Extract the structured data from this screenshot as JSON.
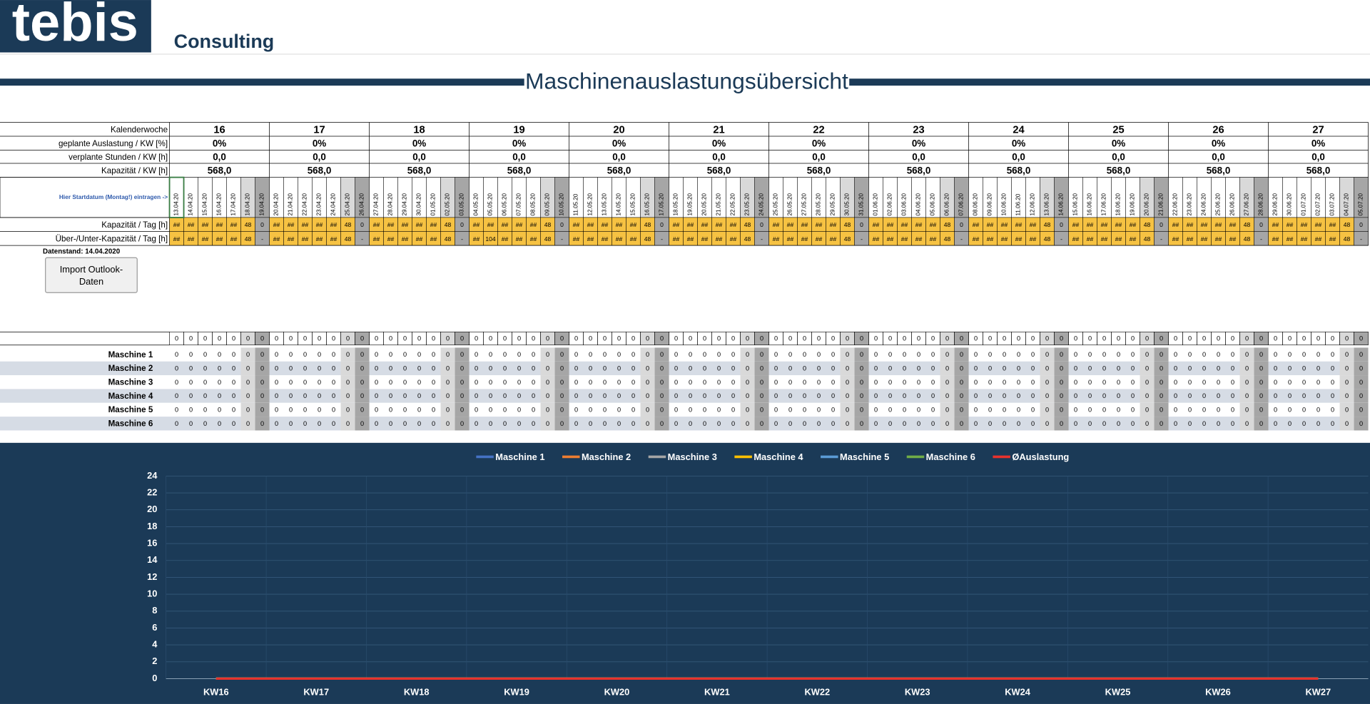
{
  "header": {
    "logo": "tebis",
    "company": "Consulting",
    "title": "Maschinenauslastungsübersicht"
  },
  "table": {
    "row_labels": [
      "Kalenderwoche",
      "geplante Auslastung / KW [%]",
      "verplante Stunden / KW [h]",
      "Kapazität / KW [h]"
    ],
    "weeks": [
      {
        "week": 16,
        "utilization": "0%",
        "planned_hours": "0,0",
        "capacity": "568,0"
      },
      {
        "week": 17,
        "utilization": "0%",
        "planned_hours": "0,0",
        "capacity": "568,0"
      },
      {
        "week": 18,
        "utilization": "0%",
        "planned_hours": "0,0",
        "capacity": "568,0"
      },
      {
        "week": 19,
        "utilization": "0%",
        "planned_hours": "0,0",
        "capacity": "568,0"
      },
      {
        "week": 20,
        "utilization": "0%",
        "planned_hours": "0,0",
        "capacity": "568,0"
      },
      {
        "week": 21,
        "utilization": "0%",
        "planned_hours": "0,0",
        "capacity": "568,0"
      },
      {
        "week": 22,
        "utilization": "0%",
        "planned_hours": "0,0",
        "capacity": "568,0"
      },
      {
        "week": 23,
        "utilization": "0%",
        "planned_hours": "0,0",
        "capacity": "568,0"
      },
      {
        "week": 24,
        "utilization": "0%",
        "planned_hours": "0,0",
        "capacity": "568,0"
      },
      {
        "week": 25,
        "utilization": "0%",
        "planned_hours": "0,0",
        "capacity": "568,0"
      },
      {
        "week": 26,
        "utilization": "0%",
        "planned_hours": "0,0",
        "capacity": "568,0"
      },
      {
        "week": 27,
        "utilization": "0%",
        "planned_hours": "0,0",
        "capacity": "568,0"
      }
    ],
    "start_hint": "Hier Startdatum (Montag!) eintragen ->",
    "dates": [
      "13.04.20",
      "14.04.20",
      "15.04.20",
      "16.04.20",
      "17.04.20",
      "18.04.20",
      "19.04.20",
      "20.04.20",
      "21.04.20",
      "22.04.20",
      "23.04.20",
      "24.04.20",
      "25.04.20",
      "26.04.20",
      "27.04.20",
      "28.04.20",
      "29.04.20",
      "30.04.20",
      "01.05.20",
      "02.05.20",
      "03.05.20",
      "04.05.20",
      "05.05.20",
      "06.05.20",
      "07.05.20",
      "08.05.20",
      "09.05.20",
      "10.05.20",
      "11.05.20",
      "12.05.20",
      "13.05.20",
      "14.05.20",
      "15.05.20",
      "16.05.20",
      "17.05.20",
      "18.05.20",
      "19.05.20",
      "20.05.20",
      "21.05.20",
      "22.05.20",
      "23.05.20",
      "24.05.20",
      "25.05.20",
      "26.05.20",
      "27.05.20",
      "28.05.20",
      "29.05.20",
      "30.05.20",
      "31.05.20",
      "01.06.20",
      "02.06.20",
      "03.06.20",
      "04.06.20",
      "05.06.20",
      "06.06.20",
      "07.06.20",
      "08.06.20",
      "09.06.20",
      "10.06.20",
      "11.06.20",
      "12.06.20",
      "13.06.20",
      "14.06.20",
      "15.06.20",
      "16.06.20",
      "17.06.20",
      "18.06.20",
      "19.06.20",
      "20.06.20",
      "21.06.20",
      "22.06.20",
      "23.06.20",
      "24.06.20",
      "25.06.20",
      "26.06.20",
      "27.06.20",
      "28.06.20",
      "29.06.20",
      "30.06.20",
      "01.07.20",
      "02.07.20",
      "03.07.20",
      "04.07.20",
      "05.07.20"
    ],
    "daily_capacity_label": "Kapazität / Tag [h]",
    "daily_capacity": [
      "##",
      "##",
      "##",
      "##",
      "##",
      48,
      0,
      "##",
      "##",
      "##",
      "##",
      "##",
      48,
      0,
      "##",
      "##",
      "##",
      "##",
      "##",
      48,
      0,
      "##",
      "##",
      "##",
      "##",
      "##",
      48,
      0,
      "##",
      "##",
      "##",
      "##",
      "##",
      48,
      0,
      "##",
      "##",
      "##",
      "##",
      "##",
      48,
      0,
      "##",
      "##",
      "##",
      "##",
      "##",
      48,
      0,
      "##",
      "##",
      "##",
      "##",
      "##",
      48,
      0,
      "##",
      "##",
      "##",
      "##",
      "##",
      48,
      0,
      "##",
      "##",
      "##",
      "##",
      "##",
      48,
      0,
      "##",
      "##",
      "##",
      "##",
      "##",
      48,
      0,
      "##",
      "##",
      "##",
      "##",
      "##",
      48,
      0
    ],
    "daily_balance_label": "Über-/Unter-Kapazität / Tag [h]",
    "daily_balance": [
      "##",
      "##",
      "##",
      "##",
      "##",
      48,
      "-",
      "##",
      "##",
      "##",
      "##",
      "##",
      48,
      "-",
      "##",
      "##",
      "##",
      "##",
      "##",
      48,
      "-",
      "##",
      104,
      "##",
      "##",
      "##",
      48,
      "-",
      "##",
      "##",
      "##",
      "##",
      "##",
      48,
      "-",
      "##",
      "##",
      "##",
      "##",
      "##",
      48,
      "-",
      "##",
      "##",
      "##",
      "##",
      "##",
      48,
      "-",
      "##",
      "##",
      "##",
      "##",
      "##",
      48,
      "-",
      "##",
      "##",
      "##",
      "##",
      "##",
      48,
      "-",
      "##",
      "##",
      "##",
      "##",
      "##",
      48,
      "-",
      "##",
      "##",
      "##",
      "##",
      "##",
      48,
      "-",
      "##",
      "##",
      "##",
      "##",
      "##",
      48,
      "-"
    ],
    "data_status": "Datenstand: 14.04.2020",
    "import_button": [
      "Import Outlook-",
      "Daten"
    ],
    "totals": [
      0,
      0,
      0,
      0,
      0,
      0,
      0,
      0,
      0,
      0,
      0,
      0,
      0,
      0,
      0,
      0,
      0,
      0,
      0,
      0,
      0,
      0,
      0,
      0,
      0,
      0,
      0,
      0,
      0,
      0,
      0,
      0,
      0,
      0,
      0,
      0,
      0,
      0,
      0,
      0,
      0,
      0,
      0,
      0,
      0,
      0,
      0,
      0,
      0,
      0,
      0,
      0,
      0,
      0,
      0,
      0,
      0,
      0,
      0,
      0,
      0,
      0,
      0,
      0,
      0,
      0,
      0,
      0,
      0,
      0,
      0,
      0,
      0,
      0,
      0,
      0,
      0,
      0,
      0,
      0,
      0,
      0,
      0,
      0
    ],
    "machines": [
      {
        "name": "Maschine 1",
        "hours": [
          0,
          0,
          0,
          0,
          0,
          0,
          0,
          0,
          0,
          0,
          0,
          0,
          0,
          0,
          0,
          0,
          0,
          0,
          0,
          0,
          0,
          0,
          0,
          0,
          0,
          0,
          0,
          0,
          0,
          0,
          0,
          0,
          0,
          0,
          0,
          0,
          0,
          0,
          0,
          0,
          0,
          0,
          0,
          0,
          0,
          0,
          0,
          0,
          0,
          0,
          0,
          0,
          0,
          0,
          0,
          0,
          0,
          0,
          0,
          0,
          0,
          0,
          0,
          0,
          0,
          0,
          0,
          0,
          0,
          0,
          0,
          0,
          0,
          0,
          0,
          0,
          0,
          0,
          0,
          0,
          0,
          0,
          0,
          0
        ]
      },
      {
        "name": "Maschine 2",
        "hours": [
          0,
          0,
          0,
          0,
          0,
          0,
          0,
          0,
          0,
          0,
          0,
          0,
          0,
          0,
          0,
          0,
          0,
          0,
          0,
          0,
          0,
          0,
          0,
          0,
          0,
          0,
          0,
          0,
          0,
          0,
          0,
          0,
          0,
          0,
          0,
          0,
          0,
          0,
          0,
          0,
          0,
          0,
          0,
          0,
          0,
          0,
          0,
          0,
          0,
          0,
          0,
          0,
          0,
          0,
          0,
          0,
          0,
          0,
          0,
          0,
          0,
          0,
          0,
          0,
          0,
          0,
          0,
          0,
          0,
          0,
          0,
          0,
          0,
          0,
          0,
          0,
          0,
          0,
          0,
          0,
          0,
          0,
          0,
          0
        ]
      },
      {
        "name": "Maschine 3",
        "hours": [
          0,
          0,
          0,
          0,
          0,
          0,
          0,
          0,
          0,
          0,
          0,
          0,
          0,
          0,
          0,
          0,
          0,
          0,
          0,
          0,
          0,
          0,
          0,
          0,
          0,
          0,
          0,
          0,
          0,
          0,
          0,
          0,
          0,
          0,
          0,
          0,
          0,
          0,
          0,
          0,
          0,
          0,
          0,
          0,
          0,
          0,
          0,
          0,
          0,
          0,
          0,
          0,
          0,
          0,
          0,
          0,
          0,
          0,
          0,
          0,
          0,
          0,
          0,
          0,
          0,
          0,
          0,
          0,
          0,
          0,
          0,
          0,
          0,
          0,
          0,
          0,
          0,
          0,
          0,
          0,
          0,
          0,
          0,
          0
        ]
      },
      {
        "name": "Maschine 4",
        "hours": [
          0,
          0,
          0,
          0,
          0,
          0,
          0,
          0,
          0,
          0,
          0,
          0,
          0,
          0,
          0,
          0,
          0,
          0,
          0,
          0,
          0,
          0,
          0,
          0,
          0,
          0,
          0,
          0,
          0,
          0,
          0,
          0,
          0,
          0,
          0,
          0,
          0,
          0,
          0,
          0,
          0,
          0,
          0,
          0,
          0,
          0,
          0,
          0,
          0,
          0,
          0,
          0,
          0,
          0,
          0,
          0,
          0,
          0,
          0,
          0,
          0,
          0,
          0,
          0,
          0,
          0,
          0,
          0,
          0,
          0,
          0,
          0,
          0,
          0,
          0,
          0,
          0,
          0,
          0,
          0,
          0,
          0,
          0,
          0
        ]
      },
      {
        "name": "Maschine 5",
        "hours": [
          0,
          0,
          0,
          0,
          0,
          0,
          0,
          0,
          0,
          0,
          0,
          0,
          0,
          0,
          0,
          0,
          0,
          0,
          0,
          0,
          0,
          0,
          0,
          0,
          0,
          0,
          0,
          0,
          0,
          0,
          0,
          0,
          0,
          0,
          0,
          0,
          0,
          0,
          0,
          0,
          0,
          0,
          0,
          0,
          0,
          0,
          0,
          0,
          0,
          0,
          0,
          0,
          0,
          0,
          0,
          0,
          0,
          0,
          0,
          0,
          0,
          0,
          0,
          0,
          0,
          0,
          0,
          0,
          0,
          0,
          0,
          0,
          0,
          0,
          0,
          0,
          0,
          0,
          0,
          0,
          0,
          0,
          0,
          0
        ]
      },
      {
        "name": "Maschine 6",
        "hours": [
          0,
          0,
          0,
          0,
          0,
          0,
          0,
          0,
          0,
          0,
          0,
          0,
          0,
          0,
          0,
          0,
          0,
          0,
          0,
          0,
          0,
          0,
          0,
          0,
          0,
          0,
          0,
          0,
          0,
          0,
          0,
          0,
          0,
          0,
          0,
          0,
          0,
          0,
          0,
          0,
          0,
          0,
          0,
          0,
          0,
          0,
          0,
          0,
          0,
          0,
          0,
          0,
          0,
          0,
          0,
          0,
          0,
          0,
          0,
          0,
          0,
          0,
          0,
          0,
          0,
          0,
          0,
          0,
          0,
          0,
          0,
          0,
          0,
          0,
          0,
          0,
          0,
          0,
          0,
          0,
          0,
          0,
          0,
          0
        ]
      }
    ]
  },
  "chart_data": {
    "type": "line",
    "categories": [
      "KW16",
      "KW17",
      "KW18",
      "KW19",
      "KW20",
      "KW21",
      "KW22",
      "KW23",
      "KW24",
      "KW25",
      "KW26",
      "KW27"
    ],
    "ylim": [
      0,
      24
    ],
    "yticks": [
      0,
      2,
      4,
      6,
      8,
      10,
      12,
      14,
      16,
      18,
      20,
      22,
      24
    ],
    "grid": true,
    "series": [
      {
        "name": "Maschine 1",
        "color": "#4472c4",
        "values": [
          0,
          0,
          0,
          0,
          0,
          0,
          0,
          0,
          0,
          0,
          0,
          0
        ]
      },
      {
        "name": "Maschine 2",
        "color": "#ed7d31",
        "values": [
          0,
          0,
          0,
          0,
          0,
          0,
          0,
          0,
          0,
          0,
          0,
          0
        ]
      },
      {
        "name": "Maschine 3",
        "color": "#a5a5a5",
        "values": [
          0,
          0,
          0,
          0,
          0,
          0,
          0,
          0,
          0,
          0,
          0,
          0
        ]
      },
      {
        "name": "Maschine 4",
        "color": "#ffc000",
        "values": [
          0,
          0,
          0,
          0,
          0,
          0,
          0,
          0,
          0,
          0,
          0,
          0
        ]
      },
      {
        "name": "Maschine 5",
        "color": "#5b9bd5",
        "values": [
          0,
          0,
          0,
          0,
          0,
          0,
          0,
          0,
          0,
          0,
          0,
          0
        ]
      },
      {
        "name": "Maschine 6",
        "color": "#70ad47",
        "values": [
          0,
          0,
          0,
          0,
          0,
          0,
          0,
          0,
          0,
          0,
          0,
          0
        ]
      },
      {
        "name": "ØAuslastung",
        "color": "#e8322d",
        "values": [
          0,
          0,
          0,
          0,
          0,
          0,
          0,
          0,
          0,
          0,
          0,
          0
        ]
      }
    ]
  }
}
